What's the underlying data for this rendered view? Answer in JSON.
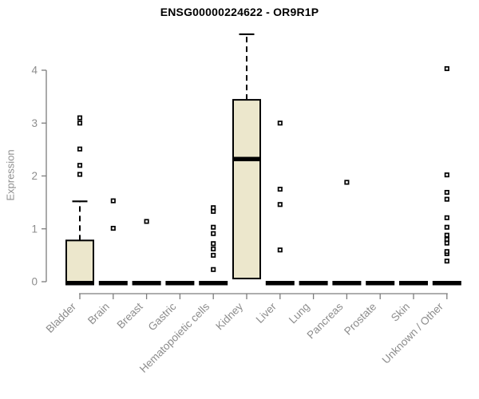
{
  "title": "ENSG00000224622 - OR9R1P",
  "colors": {
    "background": "#ffffff",
    "box_fill": "#ece7cc",
    "box_border": "#000000",
    "median": "#000000",
    "whisker": "#000000",
    "outlier_stroke": "#000000",
    "outlier_fill": "#ffffff",
    "axis": "#7d7d7d",
    "tick_label": "#8c8c8c",
    "title_color": "#000000"
  },
  "chart_data": {
    "type": "boxplot",
    "title": "ENSG00000224622 - OR9R1P",
    "xlabel": "",
    "ylabel": "Expression",
    "ylim": [
      0,
      4.8
    ],
    "yticks": [
      0,
      1,
      2,
      3,
      4
    ],
    "grid": false,
    "legend": "none",
    "x_tick_rotation": 45,
    "categories": [
      "Bladder",
      "Brain",
      "Breast",
      "Gastric",
      "Hematopoietic cells",
      "Kidney",
      "Liver",
      "Lung",
      "Pancreas",
      "Prostate",
      "Skin",
      "Unknown / Other"
    ],
    "series": [
      {
        "name": "Bladder",
        "q1": 0,
        "median": 0,
        "q3": 0.78,
        "whisker_low": 0,
        "whisker_high": 1.52,
        "outliers": [
          2.03,
          2.2,
          2.51,
          3.0,
          3.1
        ]
      },
      {
        "name": "Brain",
        "q1": 0,
        "median": 0,
        "q3": 0,
        "whisker_low": 0,
        "whisker_high": 0,
        "outliers": [
          1.01,
          1.53
        ]
      },
      {
        "name": "Breast",
        "q1": 0,
        "median": 0,
        "q3": 0,
        "whisker_low": 0,
        "whisker_high": 0,
        "outliers": [
          1.14
        ]
      },
      {
        "name": "Gastric",
        "q1": 0,
        "median": 0,
        "q3": 0,
        "whisker_low": 0,
        "whisker_high": 0,
        "outliers": []
      },
      {
        "name": "Hematopoietic cells",
        "q1": 0,
        "median": 0,
        "q3": 0,
        "whisker_low": 0,
        "whisker_high": 0,
        "outliers": [
          0.23,
          0.5,
          0.62,
          0.72,
          0.91,
          1.03,
          1.33,
          1.4
        ]
      },
      {
        "name": "Kidney",
        "q1": 0.06,
        "median": 2.32,
        "q3": 3.44,
        "whisker_low": 0.06,
        "whisker_high": 4.68,
        "outliers": []
      },
      {
        "name": "Liver",
        "q1": 0,
        "median": 0,
        "q3": 0,
        "whisker_low": 0,
        "whisker_high": 0,
        "outliers": [
          0.6,
          1.46,
          1.75,
          3.0
        ]
      },
      {
        "name": "Lung",
        "q1": 0,
        "median": 0,
        "q3": 0,
        "whisker_low": 0,
        "whisker_high": 0,
        "outliers": []
      },
      {
        "name": "Pancreas",
        "q1": 0,
        "median": 0,
        "q3": 0,
        "whisker_low": 0,
        "whisker_high": 0,
        "outliers": [
          1.88
        ]
      },
      {
        "name": "Prostate",
        "q1": 0,
        "median": 0,
        "q3": 0,
        "whisker_low": 0,
        "whisker_high": 0,
        "outliers": []
      },
      {
        "name": "Skin",
        "q1": 0,
        "median": 0,
        "q3": 0,
        "whisker_low": 0,
        "whisker_high": 0,
        "outliers": []
      },
      {
        "name": "Unknown / Other",
        "q1": 0,
        "median": 0,
        "q3": 0,
        "whisker_low": 0,
        "whisker_high": 0,
        "outliers": [
          0.39,
          0.53,
          0.57,
          0.73,
          0.8,
          0.88,
          1.03,
          1.21,
          1.56,
          1.69,
          2.02,
          4.03
        ]
      }
    ]
  }
}
